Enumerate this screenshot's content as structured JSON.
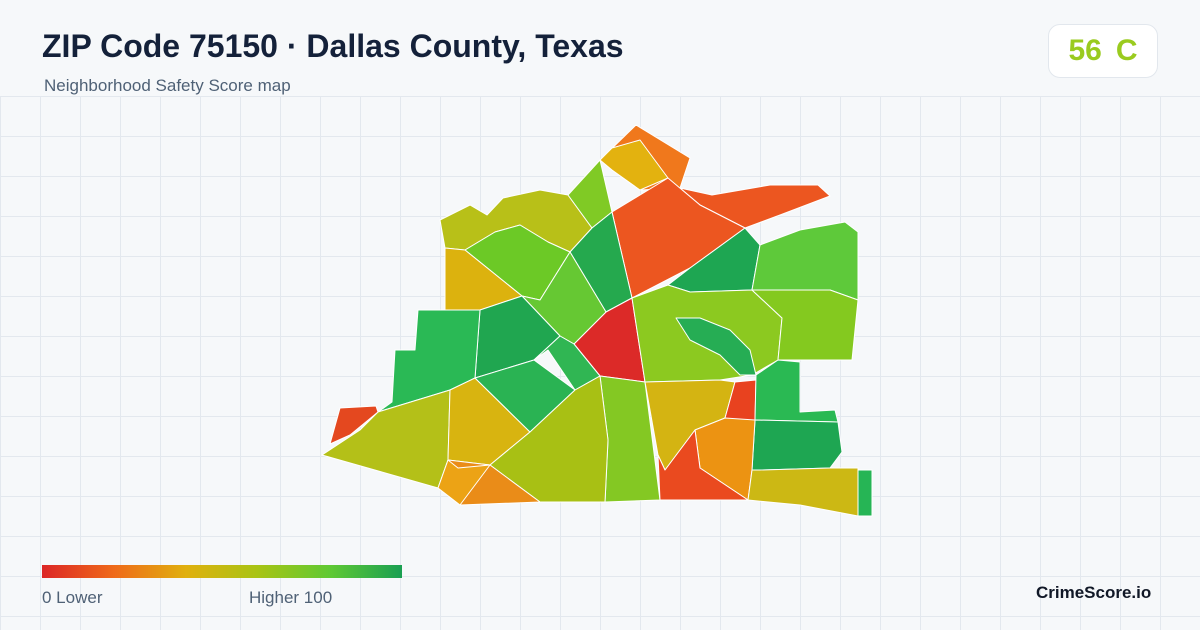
{
  "header": {
    "title": "ZIP Code 75150 · Dallas County, Texas",
    "subtitle": "Neighborhood Safety Score map"
  },
  "score": {
    "value": "56",
    "grade": "C",
    "color": "#9acb1f"
  },
  "legend": {
    "low_label": "0  Lower",
    "high_label": "Higher  100",
    "scale_colors": [
      "#dc2626",
      "#ef6a1a",
      "#e0b00e",
      "#a8c414",
      "#5fc933",
      "#1a9f52"
    ]
  },
  "footer": {
    "brand": "CrimeScore.io"
  },
  "map": {
    "regions": [
      {
        "name": "north-tip",
        "color": "#f0781c"
      },
      {
        "name": "north-yellow",
        "color": "#e3b20f"
      },
      {
        "name": "northeast-strip",
        "color": "#ec5620"
      },
      {
        "name": "north-central-red",
        "color": "#ec5620"
      },
      {
        "name": "northwest-olive",
        "color": "#b8c018"
      },
      {
        "name": "northwest-green",
        "color": "#6cc926"
      },
      {
        "name": "north-green-small",
        "color": "#80ca25"
      },
      {
        "name": "west-yellow",
        "color": "#dcb20e"
      },
      {
        "name": "central-darkgreen-north",
        "color": "#25a94e"
      },
      {
        "name": "east-darkgreen",
        "color": "#1ea652"
      },
      {
        "name": "east-green",
        "color": "#5ec93a"
      },
      {
        "name": "center-red",
        "color": "#dc2a28"
      },
      {
        "name": "central-green",
        "color": "#66c833"
      },
      {
        "name": "east-central-lime",
        "color": "#8cc920"
      },
      {
        "name": "east-lime",
        "color": "#84c91f"
      },
      {
        "name": "east-inner-darkgreen",
        "color": "#26ad54"
      },
      {
        "name": "west-darkgreen",
        "color": "#20a650"
      },
      {
        "name": "far-west-green",
        "color": "#2ab955"
      },
      {
        "name": "far-west-red",
        "color": "#e4481f"
      },
      {
        "name": "southwest-olive",
        "color": "#b4c018"
      },
      {
        "name": "south-yellow",
        "color": "#d8b410"
      },
      {
        "name": "center-south-green",
        "color": "#30b653"
      },
      {
        "name": "south-green",
        "color": "#2ab353"
      },
      {
        "name": "south-lime-strip",
        "color": "#84c823"
      },
      {
        "name": "east-yellow",
        "color": "#d4b412"
      },
      {
        "name": "east-red",
        "color": "#e8421f"
      },
      {
        "name": "southeast-green",
        "color": "#2ab953"
      },
      {
        "name": "southeast-darkgreen",
        "color": "#1ea652"
      },
      {
        "name": "southeast-orange",
        "color": "#ec9312"
      },
      {
        "name": "south-orange-red",
        "color": "#ea4a1f"
      },
      {
        "name": "south-olive",
        "color": "#a8c014"
      },
      {
        "name": "southwest-orange",
        "color": "#ea8c18"
      },
      {
        "name": "southwest-orange-small",
        "color": "#eca315"
      },
      {
        "name": "southeast-olive",
        "color": "#ccb814"
      },
      {
        "name": "far-east-green",
        "color": "#26b555"
      }
    ]
  }
}
